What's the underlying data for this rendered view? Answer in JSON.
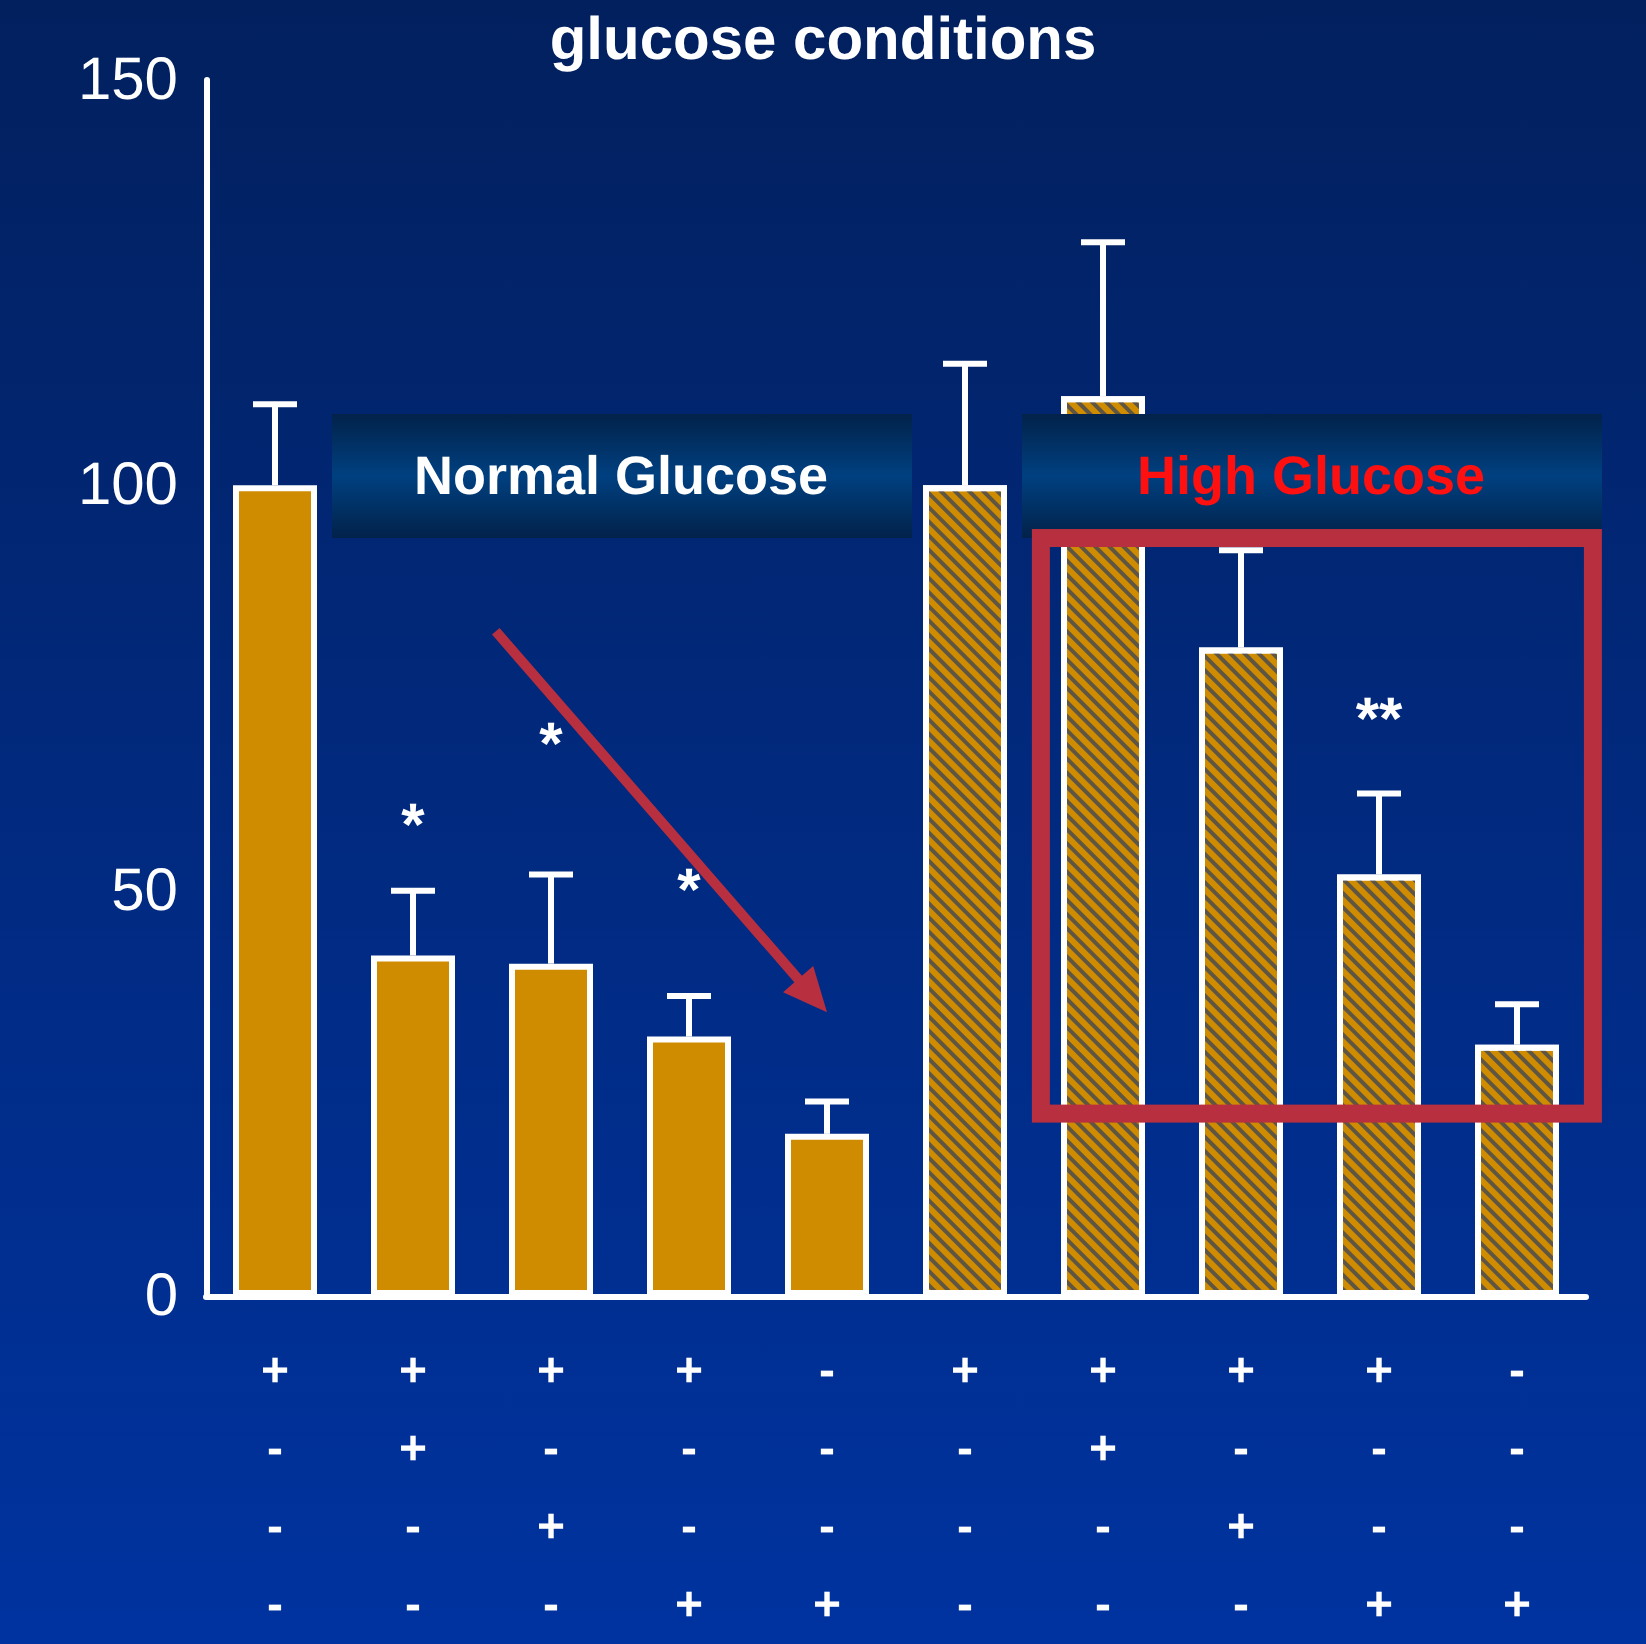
{
  "chart_data": {
    "type": "bar",
    "title": "glucose conditions",
    "categories": [
      "+\n-\n-\n-",
      "+\n+\n-\n-",
      "+\n-\n+\n-",
      "+\n-\n-\n+",
      "-\n-\n-\n+",
      "+\n-\n-\n-",
      "+\n+\n-\n-",
      "+\n-\n+\n-",
      "+\n-\n-\n+",
      "-\n-\n-\n+"
    ],
    "series": [
      {
        "name": "Normal Glucose",
        "color": "#d08c00",
        "values": [
          100,
          42,
          41,
          32,
          20,
          null,
          null,
          null,
          null,
          null
        ],
        "errors": [
          [
            100,
            110
          ],
          [
            42,
            50
          ],
          [
            41,
            52
          ],
          [
            32,
            37
          ],
          [
            20,
            24
          ],
          null,
          null,
          null,
          null,
          null
        ]
      },
      {
        "name": "High Glucose",
        "color": "#d08c00",
        "values": [
          null,
          null,
          null,
          null,
          null,
          100,
          111,
          80,
          52,
          31
        ],
        "errors": [
          null,
          null,
          null,
          null,
          null,
          [
            100,
            115
          ],
          [
            111,
            130
          ],
          [
            80,
            92
          ],
          [
            52,
            62
          ],
          [
            31,
            36
          ]
        ]
      }
    ],
    "annotations": [
      "*",
      "*",
      "*",
      "**"
    ],
    "ylim": [
      0,
      150
    ],
    "yticks": [
      0,
      50,
      100,
      150
    ],
    "grid": false,
    "legend": false
  }
}
